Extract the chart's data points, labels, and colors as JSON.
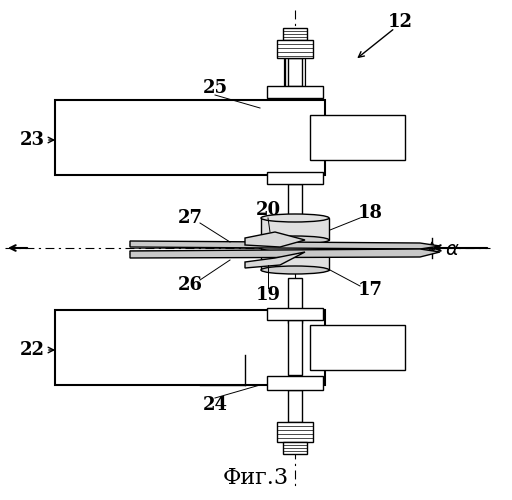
{
  "title": "Фиг.3",
  "background_color": "#ffffff",
  "line_color": "#000000",
  "fig_width": 5.12,
  "fig_height": 5.0,
  "dpi": 100
}
